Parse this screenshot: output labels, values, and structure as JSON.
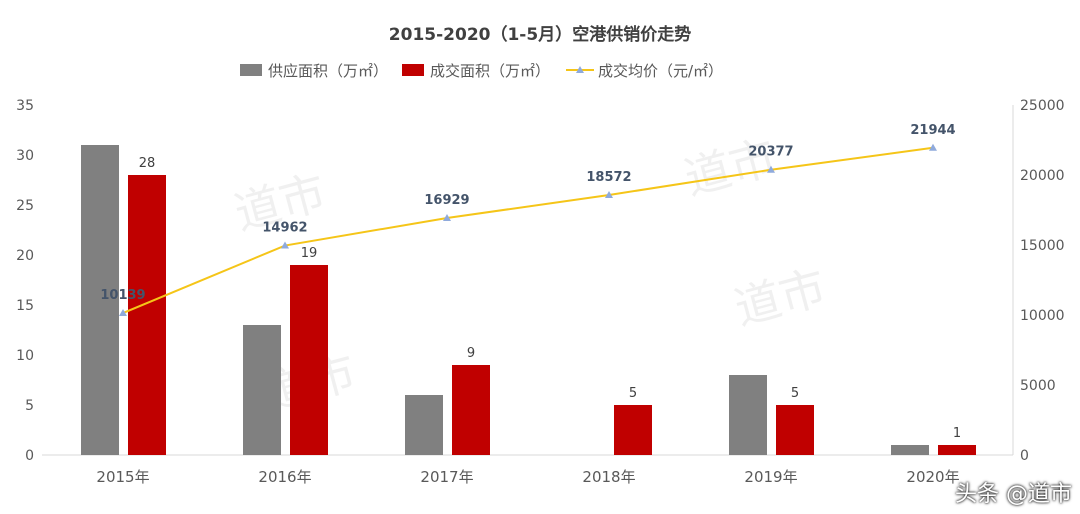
{
  "chart_data": {
    "type": "bar",
    "title": "2015-2020（1-5月）空港供销价走势",
    "categories": [
      "2015年",
      "2016年",
      "2017年",
      "2018年",
      "2019年",
      "2020年"
    ],
    "series": [
      {
        "name": "供应面积（万㎡）",
        "type": "bar",
        "axis": "left",
        "color": "#808080",
        "values": [
          31,
          13,
          6,
          0,
          8,
          1
        ]
      },
      {
        "name": "成交面积（万㎡）",
        "type": "bar",
        "axis": "left",
        "color": "#c00000",
        "values": [
          28,
          19,
          9,
          5,
          5,
          1
        ],
        "labels": [
          "28",
          "19",
          "9",
          "5",
          "5",
          "1"
        ]
      },
      {
        "name": "成交均价（元/㎡）",
        "type": "line",
        "axis": "right",
        "color": "#f5c518",
        "marker_color": "#8faadc",
        "values": [
          10139,
          14962,
          16929,
          18572,
          20377,
          21944
        ],
        "labels": [
          "10139",
          "14962",
          "16929",
          "18572",
          "20377",
          "21944"
        ]
      }
    ],
    "left_axis": {
      "ylim": [
        0,
        35
      ],
      "ticks": [
        "0",
        "5",
        "10",
        "15",
        "20",
        "25",
        "30",
        "35"
      ]
    },
    "right_axis": {
      "ylim": [
        0,
        25000
      ],
      "ticks": [
        "0",
        "5000",
        "10000",
        "15000",
        "20000",
        "25000"
      ]
    },
    "legend": "top",
    "grid": false
  },
  "watermark": "头条 @道市",
  "background_watermark": "道市"
}
